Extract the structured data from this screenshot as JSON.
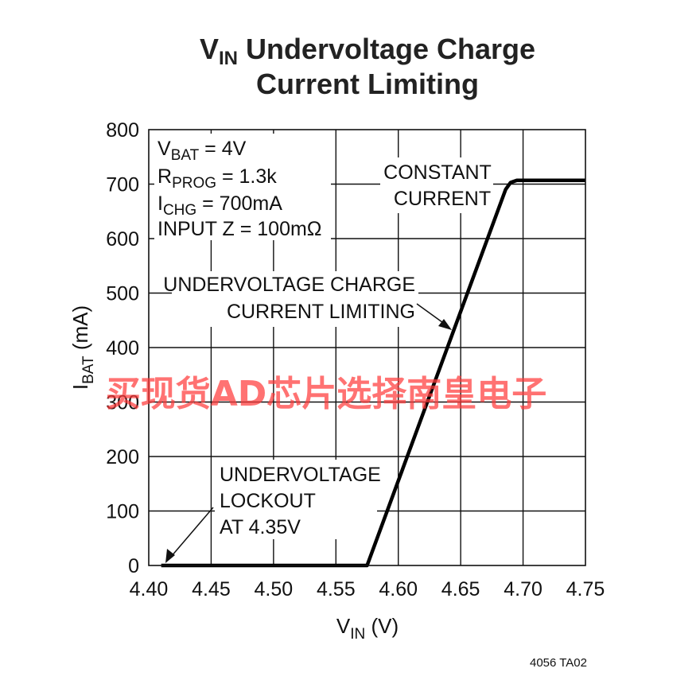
{
  "chart_data": {
    "type": "line",
    "title": {
      "main": "V",
      "sub": "IN",
      "rest": " Undervoltage Charge",
      "line2": "Current Limiting"
    },
    "xlabel": {
      "main": "V",
      "sub": "IN",
      "rest": " (V)"
    },
    "ylabel": {
      "main": "I",
      "sub": "BAT",
      "rest": " (mA)"
    },
    "xlim": [
      4.4,
      4.75
    ],
    "ylim": [
      0,
      800
    ],
    "x_ticks": [
      "4.40",
      "4.45",
      "4.50",
      "4.55",
      "4.60",
      "4.65",
      "4.70",
      "4.75"
    ],
    "y_ticks": [
      "0",
      "100",
      "200",
      "300",
      "400",
      "500",
      "600",
      "700",
      "800"
    ],
    "grid": true,
    "series": [
      {
        "x": [
          4.41,
          4.575,
          4.686,
          4.69,
          4.695,
          4.75
        ],
        "y": [
          0,
          0,
          690,
          703,
          707,
          707
        ],
        "color": "#000000"
      }
    ],
    "conditions": [
      {
        "main": "V",
        "sub": "BAT",
        "rest": " = 4V"
      },
      {
        "main": "R",
        "sub": "PROG",
        "rest": " = 1.3k"
      },
      {
        "main": "I",
        "sub": "CHG",
        "rest": " = 700mA"
      },
      {
        "main": "INPUT Z = 100mΩ",
        "sub": "",
        "rest": ""
      }
    ],
    "annotations": {
      "constant_current": [
        "CONSTANT",
        "CURRENT"
      ],
      "undervoltage_limiting": [
        "UNDERVOLTAGE CHARGE",
        "CURRENT LIMITING"
      ],
      "lockout": [
        "UNDERVOLTAGE",
        "LOCKOUT",
        "AT 4.35V"
      ]
    }
  },
  "figure_code": "4056 TA02",
  "watermark": "买现货AD芯片选择南皇电子"
}
